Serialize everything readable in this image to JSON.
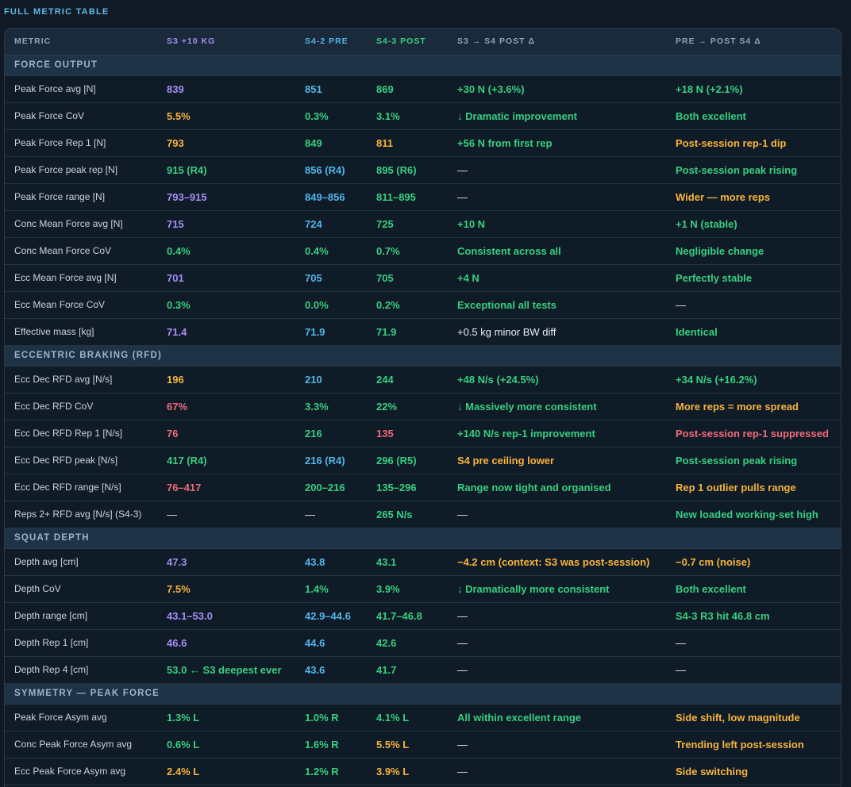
{
  "page_title": "FULL METRIC TABLE",
  "headers": {
    "metric": "METRIC",
    "s3": "S3 +10 KG",
    "pre": "S4-2 PRE",
    "post": "S4-3 POST",
    "delta1": "S3 → S4 POST Δ",
    "delta2": "PRE → POST S4 Δ"
  },
  "colors": {
    "purple": "#a68df5",
    "blue": "#52b6ea",
    "green": "#38cf80",
    "amber": "#f7b43c",
    "red": "#f06a7a",
    "white": "#e6edf5"
  },
  "sections": [
    {
      "title": "FORCE OUTPUT",
      "rows": [
        {
          "metric": "Peak Force avg [N]",
          "s3": [
            "839",
            "purple"
          ],
          "pre": [
            "851",
            "blue"
          ],
          "post": [
            "869",
            "green"
          ],
          "d1": [
            "+30 N (+3.6%)",
            "green"
          ],
          "d2": [
            "+18 N (+2.1%)",
            "green"
          ]
        },
        {
          "metric": "Peak Force CoV",
          "s3": [
            "5.5%",
            "amber"
          ],
          "pre": [
            "0.3%",
            "green"
          ],
          "post": [
            "3.1%",
            "green"
          ],
          "d1": [
            "↓ Dramatic improvement",
            "green"
          ],
          "d2": [
            "Both excellent",
            "green"
          ]
        },
        {
          "metric": "Peak Force Rep 1 [N]",
          "s3": [
            "793",
            "amber"
          ],
          "pre": [
            "849",
            "green"
          ],
          "post": [
            "811",
            "amber"
          ],
          "d1": [
            "+56 N from first rep",
            "green"
          ],
          "d2": [
            "Post-session rep-1 dip",
            "amber"
          ]
        },
        {
          "metric": "Peak Force peak rep [N]",
          "s3": [
            "915 (R4)",
            "green"
          ],
          "pre": [
            "856 (R4)",
            "blue"
          ],
          "post": [
            "895 (R6)",
            "green"
          ],
          "d1": [
            "—",
            "white"
          ],
          "d2": [
            "Post-session peak rising",
            "green"
          ]
        },
        {
          "metric": "Peak Force range [N]",
          "s3": [
            "793–915",
            "purple"
          ],
          "pre": [
            "849–856",
            "blue"
          ],
          "post": [
            "811–895",
            "green"
          ],
          "d1": [
            "—",
            "white"
          ],
          "d2": [
            "Wider — more reps",
            "amber"
          ]
        },
        {
          "metric": "Conc Mean Force avg [N]",
          "s3": [
            "715",
            "purple"
          ],
          "pre": [
            "724",
            "blue"
          ],
          "post": [
            "725",
            "green"
          ],
          "d1": [
            "+10 N",
            "green"
          ],
          "d2": [
            "+1 N (stable)",
            "green"
          ]
        },
        {
          "metric": "Conc Mean Force CoV",
          "s3": [
            "0.4%",
            "green"
          ],
          "pre": [
            "0.4%",
            "green"
          ],
          "post": [
            "0.7%",
            "green"
          ],
          "d1": [
            "Consistent across all",
            "green"
          ],
          "d2": [
            "Negligible change",
            "green"
          ]
        },
        {
          "metric": "Ecc Mean Force avg [N]",
          "s3": [
            "701",
            "purple"
          ],
          "pre": [
            "705",
            "blue"
          ],
          "post": [
            "705",
            "green"
          ],
          "d1": [
            "+4 N",
            "green"
          ],
          "d2": [
            "Perfectly stable",
            "green"
          ]
        },
        {
          "metric": "Ecc Mean Force CoV",
          "s3": [
            "0.3%",
            "green"
          ],
          "pre": [
            "0.0%",
            "green"
          ],
          "post": [
            "0.2%",
            "green"
          ],
          "d1": [
            "Exceptional all tests",
            "green"
          ],
          "d2": [
            "—",
            "white"
          ]
        },
        {
          "metric": "Effective mass [kg]",
          "s3": [
            "71.4",
            "purple"
          ],
          "pre": [
            "71.9",
            "blue"
          ],
          "post": [
            "71.9",
            "green"
          ],
          "d1": [
            "+0.5 kg minor BW diff",
            "white"
          ],
          "d2": [
            "Identical",
            "green"
          ]
        }
      ]
    },
    {
      "title": "ECCENTRIC BRAKING (RFD)",
      "rows": [
        {
          "metric": "Ecc Dec RFD avg [N/s]",
          "s3": [
            "196",
            "amber"
          ],
          "pre": [
            "210",
            "blue"
          ],
          "post": [
            "244",
            "green"
          ],
          "d1": [
            "+48 N/s (+24.5%)",
            "green"
          ],
          "d2": [
            "+34 N/s (+16.2%)",
            "green"
          ]
        },
        {
          "metric": "Ecc Dec RFD CoV",
          "s3": [
            "67%",
            "red"
          ],
          "pre": [
            "3.3%",
            "green"
          ],
          "post": [
            "22%",
            "green"
          ],
          "d1": [
            "↓ Massively more consistent",
            "green"
          ],
          "d2": [
            "More reps = more spread",
            "amber"
          ]
        },
        {
          "metric": "Ecc Dec RFD Rep 1 [N/s]",
          "s3": [
            "76",
            "red"
          ],
          "pre": [
            "216",
            "green"
          ],
          "post": [
            "135",
            "red"
          ],
          "d1": [
            "+140 N/s rep-1 improvement",
            "green"
          ],
          "d2": [
            "Post-session rep-1 suppressed",
            "red"
          ]
        },
        {
          "metric": "Ecc Dec RFD peak [N/s]",
          "s3": [
            "417 (R4)",
            "green"
          ],
          "pre": [
            "216 (R4)",
            "blue"
          ],
          "post": [
            "296 (R5)",
            "green"
          ],
          "d1": [
            "S4 pre ceiling lower",
            "amber"
          ],
          "d2": [
            "Post-session peak rising",
            "green"
          ]
        },
        {
          "metric": "Ecc Dec RFD range [N/s]",
          "s3": [
            "76–417",
            "red"
          ],
          "pre": [
            "200–216",
            "green"
          ],
          "post": [
            "135–296",
            "green"
          ],
          "d1": [
            "Range now tight and organised",
            "green"
          ],
          "d2": [
            "Rep 1 outlier pulls range",
            "amber"
          ]
        },
        {
          "metric": "Reps 2+ RFD avg [N/s] (S4-3)",
          "s3": [
            "—",
            "white"
          ],
          "pre": [
            "—",
            "white"
          ],
          "post": [
            "265 N/s",
            "green"
          ],
          "d1": [
            "—",
            "white"
          ],
          "d2": [
            "New loaded working-set high",
            "green"
          ]
        }
      ]
    },
    {
      "title": "SQUAT DEPTH",
      "rows": [
        {
          "metric": "Depth avg [cm]",
          "s3": [
            "47.3",
            "purple"
          ],
          "pre": [
            "43.8",
            "blue"
          ],
          "post": [
            "43.1",
            "green"
          ],
          "d1": [
            "−4.2 cm (context: S3 was post-session)",
            "amber"
          ],
          "d2": [
            "−0.7 cm (noise)",
            "amber"
          ]
        },
        {
          "metric": "Depth CoV",
          "s3": [
            "7.5%",
            "amber"
          ],
          "pre": [
            "1.4%",
            "green"
          ],
          "post": [
            "3.9%",
            "green"
          ],
          "d1": [
            "↓ Dramatically more consistent",
            "green"
          ],
          "d2": [
            "Both excellent",
            "green"
          ]
        },
        {
          "metric": "Depth range [cm]",
          "s3": [
            "43.1–53.0",
            "purple"
          ],
          "pre": [
            "42.9–44.6",
            "blue"
          ],
          "post": [
            "41.7–46.8",
            "green"
          ],
          "d1": [
            "—",
            "white"
          ],
          "d2": [
            "S4-3 R3 hit 46.8 cm",
            "green"
          ]
        },
        {
          "metric": "Depth Rep 1 [cm]",
          "s3": [
            "46.6",
            "purple"
          ],
          "pre": [
            "44.6",
            "blue"
          ],
          "post": [
            "42.6",
            "green"
          ],
          "d1": [
            "—",
            "white"
          ],
          "d2": [
            "—",
            "white"
          ]
        },
        {
          "metric": "Depth Rep 4 [cm]",
          "s3": [
            "53.0 ← S3 deepest ever",
            "green"
          ],
          "pre": [
            "43.6",
            "blue"
          ],
          "post": [
            "41.7",
            "green"
          ],
          "d1": [
            "—",
            "white"
          ],
          "d2": [
            "—",
            "white"
          ]
        }
      ]
    },
    {
      "title": "SYMMETRY — PEAK FORCE",
      "rows": [
        {
          "metric": "Peak Force Asym avg",
          "s3": [
            "1.3% L",
            "green"
          ],
          "pre": [
            "1.0% R",
            "green"
          ],
          "post": [
            "4.1% L",
            "green"
          ],
          "d1": [
            "All within excellent range",
            "green"
          ],
          "d2": [
            "Side shift, low magnitude",
            "amber"
          ]
        },
        {
          "metric": "Conc Peak Force Asym avg",
          "s3": [
            "0.6% L",
            "green"
          ],
          "pre": [
            "1.6% R",
            "green"
          ],
          "post": [
            "5.5% L",
            "amber"
          ],
          "d1": [
            "—",
            "white"
          ],
          "d2": [
            "Trending left post-session",
            "amber"
          ]
        },
        {
          "metric": "Ecc Peak Force Asym avg",
          "s3": [
            "2.4% L",
            "amber"
          ],
          "pre": [
            "1.2% R",
            "green"
          ],
          "post": [
            "3.9% L",
            "amber"
          ],
          "d1": [
            "—",
            "white"
          ],
          "d2": [
            "Side switching",
            "amber"
          ]
        }
      ]
    }
  ]
}
